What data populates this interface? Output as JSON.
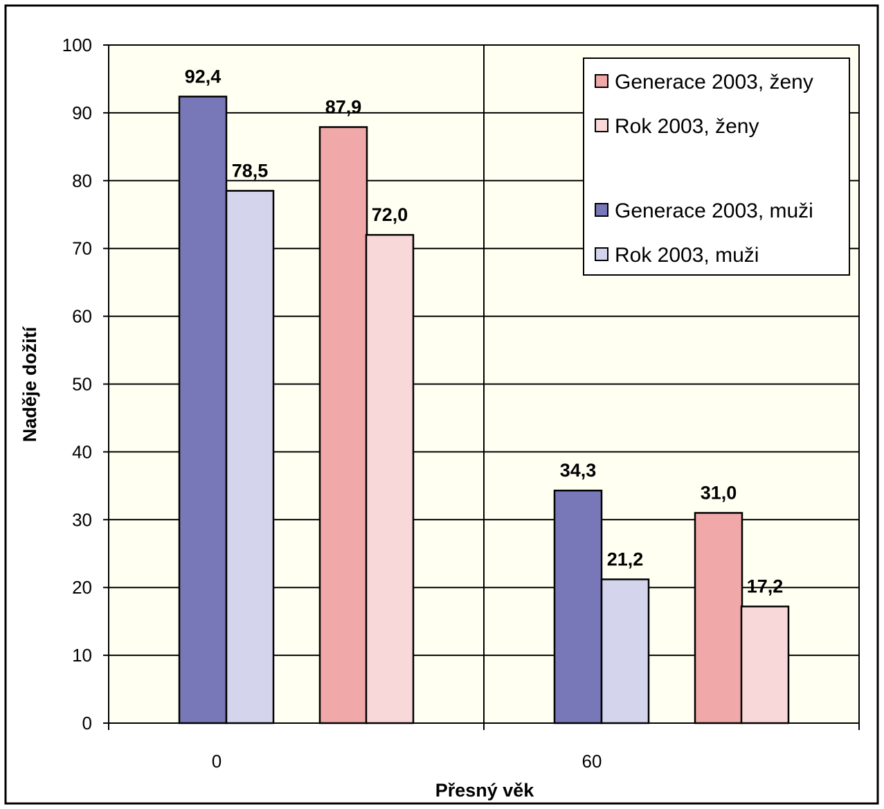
{
  "chart_data": {
    "type": "bar",
    "title": "",
    "xlabel": "Přesný věk",
    "ylabel": "Naděje dožití",
    "ylim": [
      0,
      100
    ],
    "yticks": [
      "0",
      "10",
      "20",
      "30",
      "40",
      "50",
      "60",
      "70",
      "80",
      "90",
      "100"
    ],
    "categories": [
      "0",
      "60"
    ],
    "grid": true,
    "legend_position": "top-right",
    "series": [
      {
        "name": "Generace 2003, muži",
        "values": [
          92.4,
          34.3
        ],
        "labels": [
          "92,4",
          "34,3"
        ],
        "color": "#7878b8"
      },
      {
        "name": "Rok 2003, muži",
        "values": [
          78.5,
          21.2
        ],
        "labels": [
          "78,5",
          "21,2"
        ],
        "color": "#d4d4ec"
      },
      {
        "name": "Generace 2003, ženy",
        "values": [
          87.9,
          31.0
        ],
        "labels": [
          "87,9",
          "31,0"
        ],
        "color": "#f0a8a8"
      },
      {
        "name": "Rok 2003, ženy",
        "values": [
          72.0,
          17.2
        ],
        "labels": [
          "72,0",
          "17,2"
        ],
        "color": "#f8d8d8"
      }
    ],
    "legend_order": [
      2,
      3,
      null,
      0,
      1
    ],
    "plot_background": "#fffff2",
    "grid_color": "#000000"
  }
}
